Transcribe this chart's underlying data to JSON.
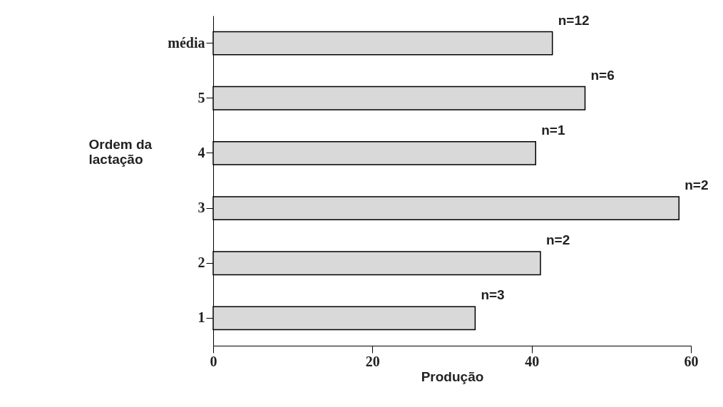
{
  "chart_data": {
    "type": "bar",
    "orientation": "horizontal",
    "xlabel": "Produção",
    "ylabel": "Ordem da lactação",
    "categories": [
      "média",
      "5",
      "4",
      "3",
      "2",
      "1"
    ],
    "values": [
      42.6,
      46.7,
      40.5,
      58.5,
      41.1,
      32.9
    ],
    "annotations": [
      {
        "text": "n=12",
        "x": 42.6,
        "y": "média"
      },
      {
        "text": "n=6",
        "x": 46.7,
        "y": "5"
      },
      {
        "text": "n=1",
        "x": 40.5,
        "y": "4"
      },
      {
        "text": "n=2",
        "x": 58.5,
        "y": "3"
      },
      {
        "text": "n=2",
        "x": 41.1,
        "y": "2"
      },
      {
        "text": "n=3",
        "x": 32.9,
        "y": "1"
      }
    ],
    "color": "#d9d9d9",
    "xlim": [
      0,
      60
    ],
    "xticks": [
      0,
      20,
      40,
      60
    ]
  }
}
